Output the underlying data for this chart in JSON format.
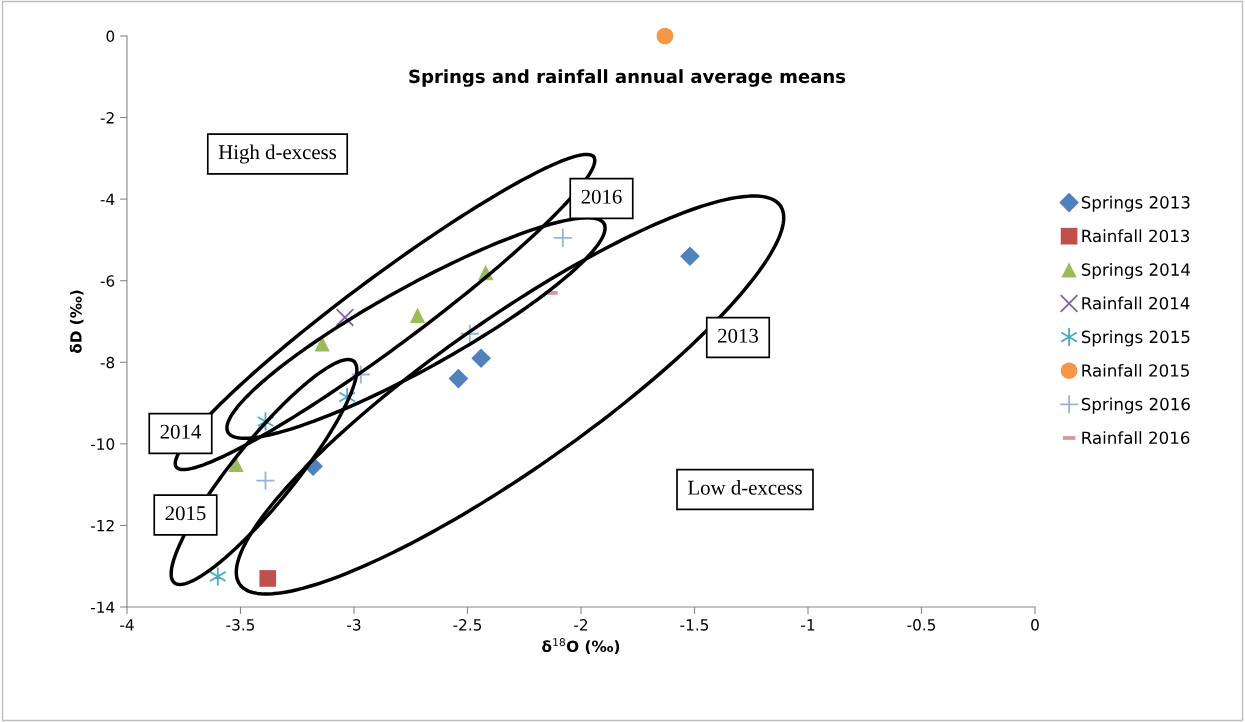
{
  "chart_data": {
    "type": "scatter",
    "title": "Springs and rainfall annual average means",
    "xlabel": "δ$^{18}$O (‰)",
    "ylabel": "δD (‰)",
    "xlim": [
      -4,
      0
    ],
    "xticks": [
      -4,
      -3.5,
      -3,
      -2.5,
      -2,
      -1.5,
      -1,
      -0.5,
      0
    ],
    "ylim": [
      -14,
      0
    ],
    "yticks": [
      -14,
      -12,
      -10,
      -8,
      -6,
      -4,
      -2,
      0
    ],
    "grid": false,
    "legend": "right",
    "annotations": [
      "High d-excess",
      "2016",
      "2013",
      "2014",
      "2015",
      "Low d-excess"
    ],
    "series": [
      {
        "name": "Springs 2013",
        "color": "#4f81bd",
        "marker": "diamond",
        "x": [
          -1.52,
          -2.44,
          -2.54,
          -3.18
        ],
        "values": [
          -5.4,
          -7.9,
          -8.4,
          -10.55
        ]
      },
      {
        "name": "Rainfall 2013",
        "color": "#c0504d",
        "marker": "square",
        "x": [
          -3.38
        ],
        "values": [
          -13.3
        ]
      },
      {
        "name": "Springs 2014",
        "color": "#9bbb59",
        "marker": "triangle",
        "x": [
          -2.42,
          -2.72,
          -3.14,
          -3.52
        ],
        "values": [
          -5.8,
          -6.85,
          -7.55,
          -10.5
        ]
      },
      {
        "name": "Rainfall 2014",
        "color": "#8064a2",
        "marker": "cross",
        "x": [
          -3.04
        ],
        "values": [
          -6.9
        ]
      },
      {
        "name": "Springs 2015",
        "color": "#4bacc6",
        "marker": "cross",
        "x": [
          -3.39,
          -3.03,
          -3.6
        ],
        "values": [
          -9.45,
          -8.85,
          -13.25
        ]
      },
      {
        "name": "Rainfall 2015",
        "color": "#f79646",
        "marker": "circle",
        "x": [
          -1.63
        ],
        "values": [
          0
        ]
      },
      {
        "name": "Springs 2016",
        "color": "#95b3d7",
        "marker": "plus",
        "x": [
          -2.08,
          -2.49,
          -2.97,
          -3.39
        ],
        "values": [
          -4.95,
          -7.3,
          -8.3,
          -10.9
        ]
      },
      {
        "name": "Rainfall 2016",
        "color": "#d99694",
        "marker": "square",
        "x": [
          -2.13
        ],
        "values": [
          -6.3
        ]
      }
    ]
  }
}
